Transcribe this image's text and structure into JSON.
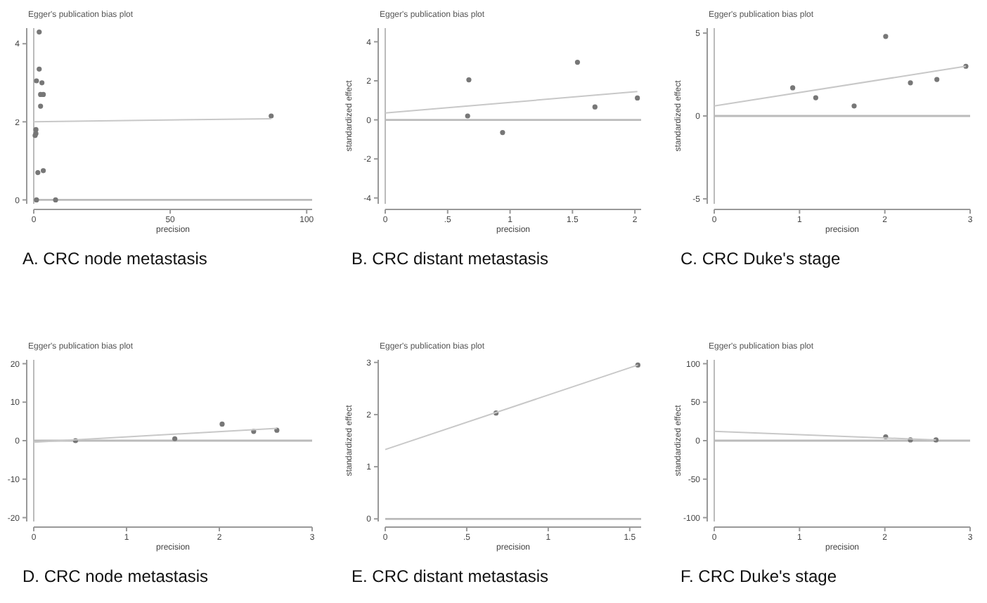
{
  "chart_data": [
    {
      "type": "scatter",
      "title": "Egger's publication bias plot",
      "xlabel": "precision",
      "annotations": [
        "A. CRC node metastasis"
      ],
      "xlim": [
        0,
        102
      ],
      "ylim": [
        -0.1,
        4.4
      ],
      "xticks": [
        0,
        50,
        100
      ],
      "yticks": [
        0,
        2,
        4
      ],
      "ref_lines": [
        {
          "axis": "y",
          "value": 0
        },
        {
          "axis": "x",
          "value": 0
        }
      ],
      "series": [
        {
          "marker": "circle",
          "color": "#777777",
          "x": [
            2,
            2,
            1,
            3,
            2.5,
            3.5,
            2.5,
            0.8,
            0.8,
            0.5,
            1.5,
            3.5,
            1,
            8,
            87
          ],
          "values": [
            4.3,
            3.35,
            3.05,
            3.0,
            2.7,
            2.7,
            2.4,
            1.8,
            1.7,
            1.65,
            0.7,
            0.75,
            0,
            0,
            2.15
          ]
        },
        {
          "type": "line",
          "color": "#c8c8c8",
          "x": [
            0,
            87
          ],
          "values": [
            2.0,
            2.08
          ]
        }
      ]
    },
    {
      "type": "scatter",
      "title": "Egger's publication bias plot",
      "xlabel": "precision",
      "ylabel": "standardized effect",
      "annotations": [
        "B. CRC distant metastasis"
      ],
      "xlim": [
        0,
        2.05
      ],
      "ylim": [
        -4.3,
        4.7
      ],
      "xticks": [
        0,
        {
          "value": 0.5,
          "label": ".5"
        },
        1,
        1.5,
        2
      ],
      "yticks": [
        -4,
        -2,
        0,
        2,
        4
      ],
      "ref_lines": [
        {
          "axis": "y",
          "value": 0
        },
        {
          "axis": "x",
          "value": 0
        }
      ],
      "series": [
        {
          "marker": "circle",
          "color": "#777777",
          "x": [
            0.66,
            0.67,
            0.94,
            1.54,
            1.68,
            2.02
          ],
          "values": [
            0.2,
            2.05,
            -0.65,
            2.95,
            0.66,
            1.12
          ]
        },
        {
          "type": "line",
          "color": "#c8c8c8",
          "x": [
            0,
            2.02
          ],
          "values": [
            0.35,
            1.45
          ]
        }
      ]
    },
    {
      "type": "scatter",
      "title": "Egger's publication bias plot",
      "xlabel": "precision",
      "ylabel": "standardized effect",
      "annotations": [
        "C. CRC Duke's stage"
      ],
      "xlim": [
        0,
        3
      ],
      "ylim": [
        -5.3,
        5.3
      ],
      "xticks": [
        0,
        1,
        2,
        3
      ],
      "yticks": [
        -5,
        0,
        5
      ],
      "ref_lines": [
        {
          "axis": "y",
          "value": 0
        },
        {
          "axis": "x",
          "value": 0
        }
      ],
      "series": [
        {
          "marker": "circle",
          "color": "#777777",
          "x": [
            0.92,
            1.19,
            1.64,
            2.01,
            2.3,
            2.61,
            2.95
          ],
          "values": [
            1.7,
            1.1,
            0.6,
            4.8,
            2.0,
            2.2,
            3.0
          ]
        },
        {
          "type": "line",
          "color": "#c8c8c8",
          "x": [
            0,
            2.95
          ],
          "values": [
            0.6,
            3.0
          ]
        }
      ]
    },
    {
      "type": "scatter",
      "title": "Egger's publication bias plot",
      "xlabel": "precision",
      "annotations": [
        "D. CRC node metastasis"
      ],
      "xlim": [
        0,
        3
      ],
      "ylim": [
        -21,
        21
      ],
      "xticks": [
        0,
        1,
        2,
        3
      ],
      "yticks": [
        -20,
        -10,
        0,
        10,
        20
      ],
      "ref_lines": [
        {
          "axis": "y",
          "value": 0
        },
        {
          "axis": "x",
          "value": 0
        }
      ],
      "series": [
        {
          "marker": "circle",
          "color": "#777777",
          "x": [
            0.45,
            1.52,
            2.03,
            2.37,
            2.62
          ],
          "values": [
            0,
            0.5,
            4.3,
            2.4,
            2.7
          ]
        },
        {
          "type": "line",
          "color": "#c8c8c8",
          "x": [
            0,
            2.62
          ],
          "values": [
            -0.4,
            3.2
          ]
        }
      ]
    },
    {
      "type": "scatter",
      "title": "Egger's publication bias plot",
      "xlabel": "precision",
      "ylabel": "standardized effect",
      "annotations": [
        "E. CRC distant metastasis"
      ],
      "xlim": [
        0,
        1.57
      ],
      "ylim": [
        -0.05,
        3.05
      ],
      "xticks": [
        0,
        {
          "value": 0.5,
          "label": ".5"
        },
        1,
        1.5
      ],
      "yticks": [
        0,
        1,
        2,
        3
      ],
      "ref_lines": [
        {
          "axis": "y",
          "value": 0
        }
      ],
      "series": [
        {
          "marker": "circle",
          "color": "#777777",
          "x": [
            0.68,
            1.55
          ],
          "values": [
            2.03,
            2.95
          ]
        },
        {
          "type": "line",
          "color": "#c8c8c8",
          "x": [
            0,
            1.55
          ],
          "values": [
            1.33,
            2.95
          ]
        }
      ]
    },
    {
      "type": "scatter",
      "title": "Egger's publication bias plot",
      "xlabel": "precision",
      "ylabel": "standardized effect",
      "annotations": [
        "F. CRC Duke's stage"
      ],
      "xlim": [
        0,
        3
      ],
      "ylim": [
        -105,
        105
      ],
      "xticks": [
        0,
        1,
        2,
        3
      ],
      "yticks": [
        -100,
        -50,
        0,
        50,
        100
      ],
      "ref_lines": [
        {
          "axis": "y",
          "value": 0
        },
        {
          "axis": "x",
          "value": 0
        }
      ],
      "series": [
        {
          "marker": "circle",
          "color": "#777777",
          "x": [
            2.01,
            2.3,
            2.6
          ],
          "values": [
            5,
            1,
            1
          ]
        },
        {
          "type": "line",
          "color": "#c8c8c8",
          "x": [
            0,
            2.6
          ],
          "values": [
            12,
            1
          ]
        }
      ]
    }
  ]
}
